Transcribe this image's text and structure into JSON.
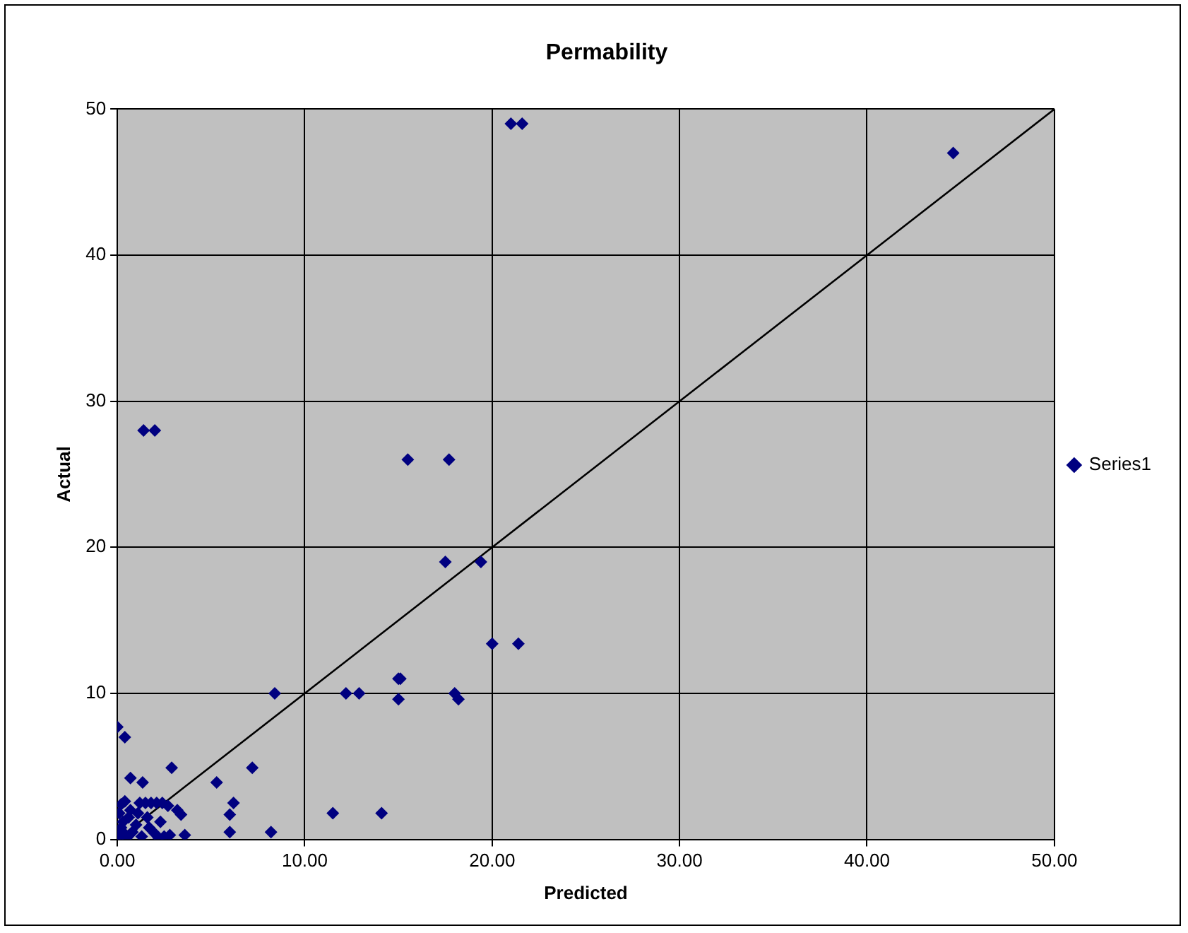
{
  "chart_data": {
    "type": "scatter",
    "title": "Permability",
    "xlabel": "Predicted",
    "ylabel": "Actual",
    "xlim": [
      0,
      50
    ],
    "xticks": [
      {
        "value": 0,
        "label": "0.00"
      },
      {
        "value": 10,
        "label": "10.00"
      },
      {
        "value": 20,
        "label": "20.00"
      },
      {
        "value": 30,
        "label": "30.00"
      },
      {
        "value": 40,
        "label": "40.00"
      },
      {
        "value": 50,
        "label": "50.00"
      }
    ],
    "ylim": [
      0,
      50
    ],
    "yticks": [
      0,
      10,
      20,
      30,
      40,
      50
    ],
    "grid": true,
    "legend": "right",
    "series": [
      {
        "name": "Series1",
        "color": "#000080",
        "marker": "diamond",
        "x": [
          21.0,
          21.6,
          44.6,
          1.4,
          2.0,
          15.5,
          17.7,
          17.5,
          19.4,
          20.0,
          21.4,
          15.0,
          15.1,
          8.4,
          12.2,
          12.9,
          18.0,
          18.2,
          15.0,
          0,
          0.4,
          2.9,
          7.2,
          5.3,
          0.7,
          1.35,
          6.2,
          6.0,
          6.0,
          8.2,
          11.5,
          14.1,
          3.4,
          3.2,
          3.6,
          2.8,
          0,
          0.1,
          0.2,
          0.3,
          0.1,
          0.2,
          0.4,
          0.6,
          0.8,
          1.0,
          1.2,
          1.5,
          1.8,
          2.1,
          2.4,
          2.7,
          1.3,
          1.7,
          2.0,
          2.3,
          0.5,
          1.1,
          2.5,
          0.3,
          0.7,
          1.6,
          2.2
        ],
        "values": [
          49,
          49,
          47,
          28,
          28,
          26,
          26,
          19,
          19,
          13.4,
          13.4,
          11,
          11,
          10,
          10,
          10,
          10,
          9.6,
          9.6,
          7.7,
          7.0,
          4.9,
          4.9,
          3.9,
          4.2,
          3.9,
          2.5,
          1.7,
          0.5,
          0.5,
          1.8,
          1.8,
          1.7,
          2.0,
          0.3,
          0.3,
          0,
          0.3,
          0.8,
          1.2,
          1.8,
          2.4,
          2.6,
          1.5,
          0.5,
          1.0,
          2.5,
          2.5,
          2.5,
          2.5,
          2.5,
          2.3,
          0.2,
          0.8,
          0.4,
          1.2,
          0.1,
          1.8,
          0.2,
          0.5,
          2.0,
          1.5,
          0.1
        ]
      },
      {
        "type": "line",
        "color": "#000000",
        "marker": "none",
        "line_style": "solid",
        "x": [
          0,
          50
        ],
        "values": [
          0,
          50
        ]
      }
    ]
  }
}
